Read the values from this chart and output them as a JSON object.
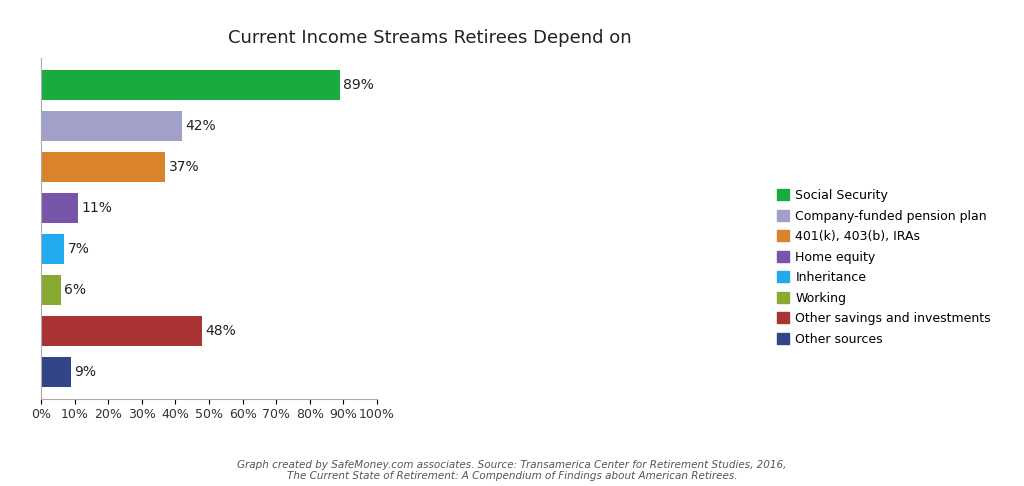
{
  "title": "Current Income Streams Retirees Depend on",
  "categories": [
    "Social Security",
    "Company-funded pension plan",
    "401(k), 403(b), IRAs",
    "Home equity",
    "Inheritance",
    "Working",
    "Other savings and investments",
    "Other sources"
  ],
  "values": [
    89,
    42,
    37,
    11,
    7,
    6,
    48,
    9
  ],
  "colors": [
    "#1aab40",
    "#a0a0c8",
    "#d9832a",
    "#7755aa",
    "#22aaee",
    "#88aa33",
    "#aa3333",
    "#334488"
  ],
  "xlim": [
    0,
    100
  ],
  "xtick_labels": [
    "0%",
    "10%",
    "20%",
    "30%",
    "40%",
    "50%",
    "60%",
    "70%",
    "80%",
    "90%",
    "100%"
  ],
  "xtick_values": [
    0,
    10,
    20,
    30,
    40,
    50,
    60,
    70,
    80,
    90,
    100
  ],
  "footer_line1": "Graph created by SafeMoney.com associates. Source: Transamerica Center for Retirement Studies, 2016,",
  "footer_line2": "The Current State of Retirement: A Compendium of Findings about American Retirees.",
  "background_color": "#ffffff",
  "bar_height": 0.75,
  "label_fontsize": 10,
  "title_fontsize": 13
}
